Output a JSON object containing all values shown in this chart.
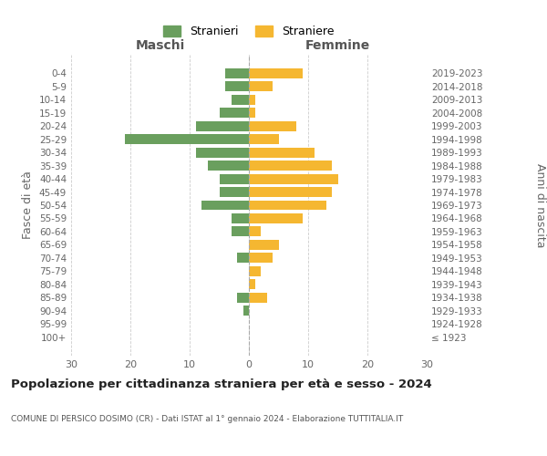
{
  "age_groups": [
    "100+",
    "95-99",
    "90-94",
    "85-89",
    "80-84",
    "75-79",
    "70-74",
    "65-69",
    "60-64",
    "55-59",
    "50-54",
    "45-49",
    "40-44",
    "35-39",
    "30-34",
    "25-29",
    "20-24",
    "15-19",
    "10-14",
    "5-9",
    "0-4"
  ],
  "birth_years": [
    "≤ 1923",
    "1924-1928",
    "1929-1933",
    "1934-1938",
    "1939-1943",
    "1944-1948",
    "1949-1953",
    "1954-1958",
    "1959-1963",
    "1964-1968",
    "1969-1973",
    "1974-1978",
    "1979-1983",
    "1984-1988",
    "1989-1993",
    "1994-1998",
    "1999-2003",
    "2004-2008",
    "2009-2013",
    "2014-2018",
    "2019-2023"
  ],
  "maschi": [
    0,
    0,
    1,
    2,
    0,
    0,
    2,
    0,
    3,
    3,
    8,
    5,
    5,
    7,
    9,
    21,
    9,
    5,
    3,
    4,
    4
  ],
  "femmine": [
    0,
    0,
    0,
    3,
    1,
    2,
    4,
    5,
    2,
    9,
    13,
    14,
    15,
    14,
    11,
    5,
    8,
    1,
    1,
    4,
    9
  ],
  "color_maschi": "#6a9f5e",
  "color_femmine": "#f5b731",
  "title": "Popolazione per cittadinanza straniera per età e sesso - 2024",
  "subtitle": "COMUNE DI PERSICO DOSIMO (CR) - Dati ISTAT al 1° gennaio 2024 - Elaborazione TUTTITALIA.IT",
  "ylabel_left": "Fasce di età",
  "ylabel_right": "Anni di nascita",
  "xlabel_maschi": "Maschi",
  "xlabel_femmine": "Femmine",
  "legend_maschi": "Stranieri",
  "legend_femmine": "Straniere",
  "xlim": 30,
  "background_color": "#ffffff",
  "grid_color": "#cccccc"
}
